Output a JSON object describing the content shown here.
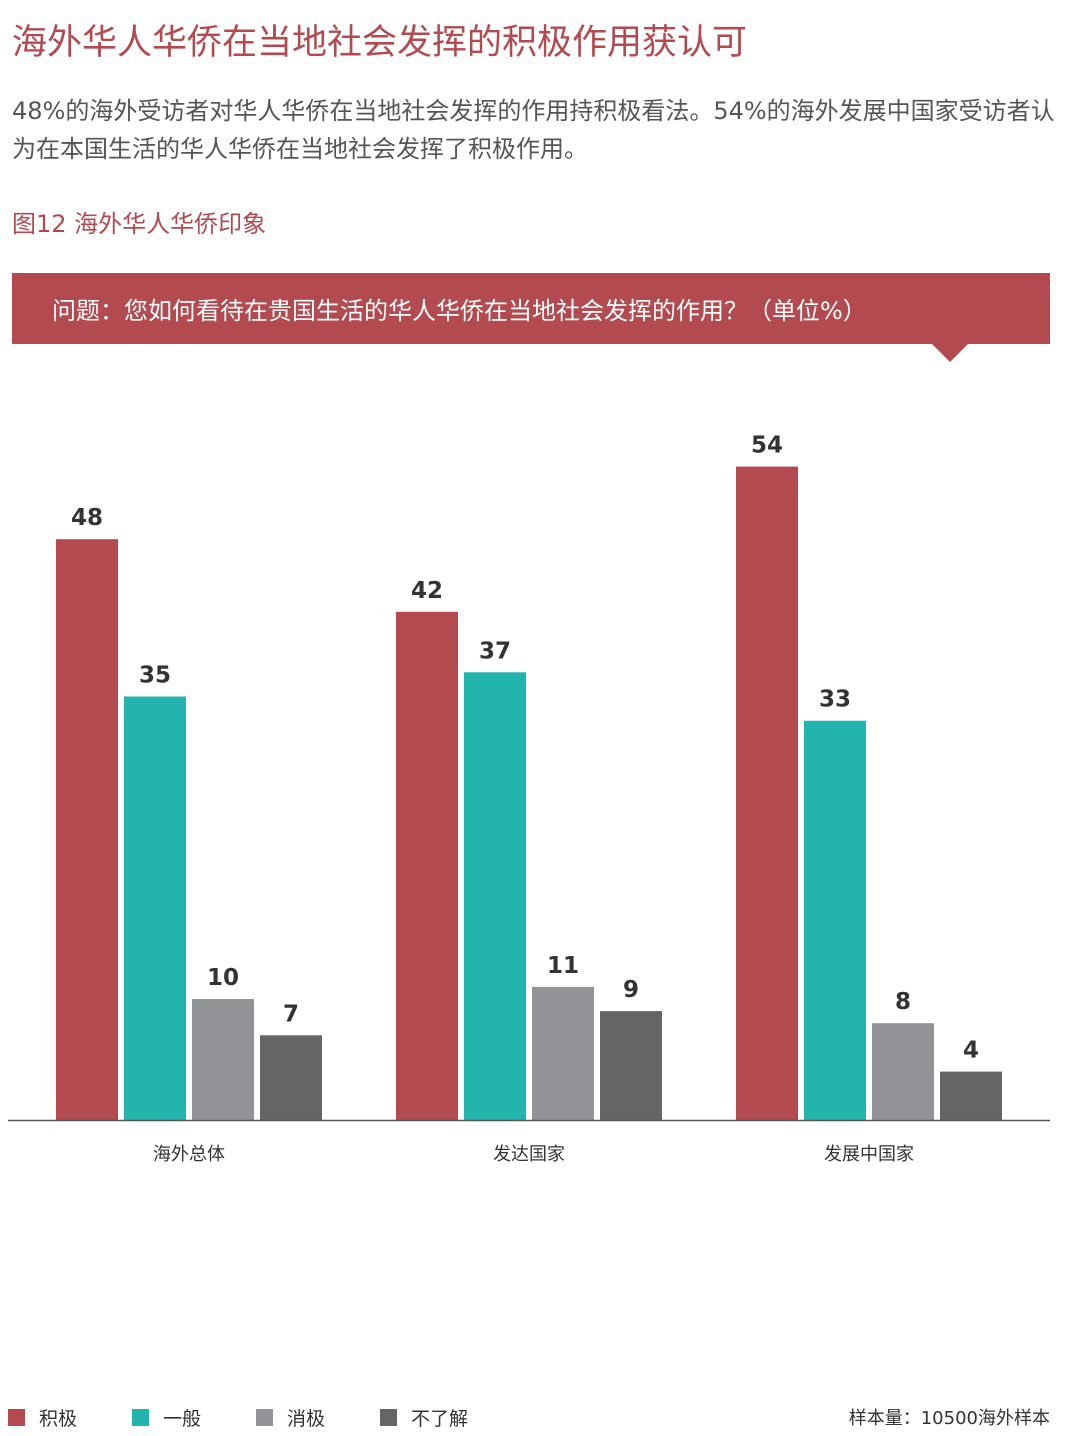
{
  "headline": "海外华人华侨在当地社会发挥的积极作用获认可",
  "intro": "48%的海外受访者对华人华侨在当地社会发挥的作用持积极看法。54%的海外发展中国家受访者认为在本国生活的华人华侨在当地社会发挥了积极作用。",
  "figure": {
    "title": "图12 海外华人华侨印象",
    "question": "问题：您如何看待在贵国生活的华人华侨在当地社会发挥的作用？（单位%）"
  },
  "chart_data": {
    "type": "bar",
    "categories": [
      "海外总体",
      "发达国家",
      "发展中国家"
    ],
    "series": [
      {
        "name": "积极",
        "values": [
          48,
          42,
          54
        ],
        "color": "#b24a4f"
      },
      {
        "name": "一般",
        "values": [
          35,
          37,
          33
        ],
        "color": "#23b5ad"
      },
      {
        "name": "消极",
        "values": [
          10,
          11,
          8
        ],
        "color": "#929396"
      },
      {
        "name": "不了解",
        "values": [
          7,
          9,
          4
        ],
        "color": "#646567"
      }
    ],
    "ylim": [
      0,
      60
    ],
    "grid": false,
    "legend_position": "bottom-left"
  },
  "legend": [
    {
      "label": "积极",
      "color": "#b24a4f"
    },
    {
      "label": "一般",
      "color": "#23b5ad"
    },
    {
      "label": "消极",
      "color": "#929396"
    },
    {
      "label": "不了解",
      "color": "#646567"
    }
  ],
  "sample_note": "样本量：10500海外样本",
  "colors": {
    "accent": "#b24a4f",
    "text": "#333333",
    "axis": "#555555"
  }
}
